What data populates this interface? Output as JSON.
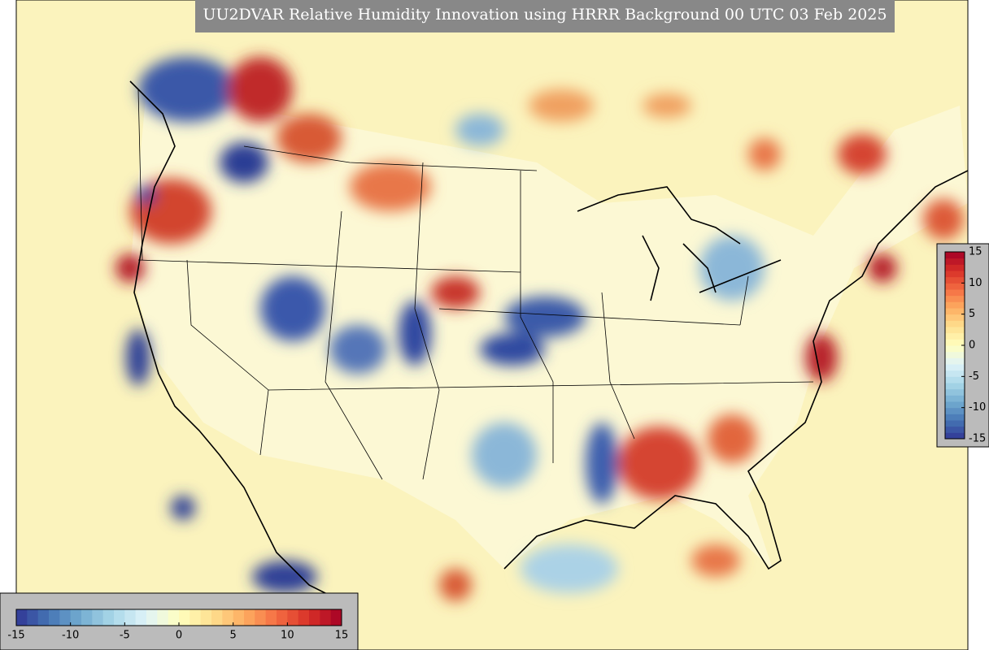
{
  "map": {
    "title": "UU2DVAR Relative Humidity Innovation using HRRR Background 00 UTC 03 Feb 2025",
    "colorbar": {
      "lim": [
        -15,
        15
      ],
      "ticks": [
        -15,
        -10,
        -5,
        0,
        5,
        10,
        15
      ],
      "steps": 30,
      "colormap": [
        "#313695",
        "#4575b4",
        "#74add1",
        "#abd9e9",
        "#e0f3f8",
        "#ffffbf",
        "#fee090",
        "#fdae61",
        "#f46d43",
        "#d73027",
        "#a50026"
      ]
    }
  }
}
